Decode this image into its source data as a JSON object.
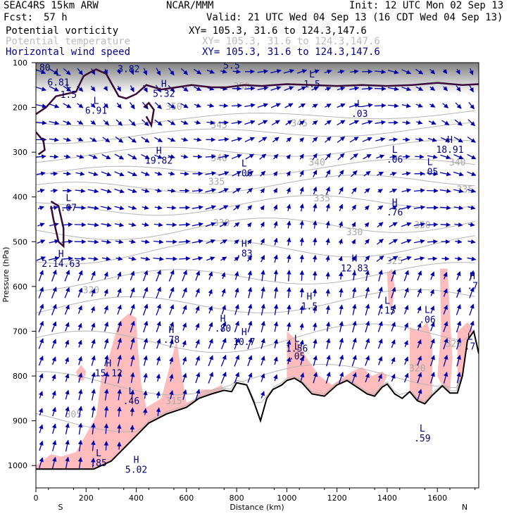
{
  "header": {
    "model": "SEAC4RS 15km ARW",
    "center": "NCAR/MMM",
    "init": "Init: 12 UTC Mon 02 Sep 13",
    "fcst_label": "Fcst:",
    "fcst_value": "57 h",
    "valid": "Valid: 21 UTC Wed 04 Sep 13 (16 CDT Wed 04 Sep 13)",
    "fields": [
      {
        "name": "Potential vorticity",
        "xy": "XY= 105.3, 31.6 to 124.3,147.6",
        "color": "#000000"
      },
      {
        "name": "Potential temperature",
        "xy": "XY= 105.3, 31.6 to 124.3,147.6",
        "color": "#bbbbbb"
      },
      {
        "name": "Horizontal wind speed",
        "xy": "XY= 105.3, 31.6 to 124.3,147.6",
        "color": "#000088"
      }
    ]
  },
  "chart_data": {
    "type": "cross-section",
    "xlabel": "Distance (km)",
    "ylabel": "Pressure (hPa)",
    "x_range": [
      0,
      1765
    ],
    "y_range": [
      1050,
      100
    ],
    "x_ticks": [
      0,
      200,
      400,
      600,
      800,
      1000,
      1200,
      1400,
      1600
    ],
    "y_ticks": [
      100,
      200,
      300,
      400,
      500,
      600,
      700,
      800,
      900,
      1000
    ],
    "end_labels": {
      "left": "S",
      "right": "N"
    },
    "terrain_surface_hpa": [
      [
        0,
        1008
      ],
      [
        100,
        1008
      ],
      [
        230,
        1008
      ],
      [
        300,
        990
      ],
      [
        380,
        945
      ],
      [
        450,
        905
      ],
      [
        520,
        885
      ],
      [
        600,
        870
      ],
      [
        650,
        850
      ],
      [
        700,
        840
      ],
      [
        750,
        832
      ],
      [
        780,
        835
      ],
      [
        800,
        815
      ],
      [
        840,
        820
      ],
      [
        870,
        860
      ],
      [
        895,
        900
      ],
      [
        920,
        850
      ],
      [
        945,
        830
      ],
      [
        980,
        820
      ],
      [
        1000,
        810
      ],
      [
        1030,
        805
      ],
      [
        1060,
        815
      ],
      [
        1100,
        840
      ],
      [
        1150,
        845
      ],
      [
        1200,
        820
      ],
      [
        1240,
        810
      ],
      [
        1280,
        825
      ],
      [
        1320,
        840
      ],
      [
        1350,
        845
      ],
      [
        1380,
        825
      ],
      [
        1400,
        818
      ],
      [
        1430,
        840
      ],
      [
        1460,
        850
      ],
      [
        1490,
        835
      ],
      [
        1520,
        855
      ],
      [
        1550,
        862
      ],
      [
        1580,
        843
      ],
      [
        1620,
        822
      ],
      [
        1650,
        838
      ],
      [
        1680,
        838
      ],
      [
        1700,
        800
      ],
      [
        1720,
        720
      ],
      [
        1745,
        700
      ],
      [
        1765,
        750
      ]
    ],
    "theta_contours": [
      {
        "value": "305",
        "x": 150,
        "y": 893
      },
      {
        "value": "315",
        "x": 550,
        "y": 863
      },
      {
        "value": "320",
        "x": 220,
        "y": 615
      },
      {
        "value": "320",
        "x": 1665,
        "y": 735
      },
      {
        "value": "320",
        "x": 1520,
        "y": 790
      },
      {
        "value": "325",
        "x": 1430,
        "y": 550
      },
      {
        "value": "330",
        "x": 1270,
        "y": 485
      },
      {
        "value": "330",
        "x": 1540,
        "y": 470
      },
      {
        "value": "330",
        "x": 740,
        "y": 465
      },
      {
        "value": "335",
        "x": 720,
        "y": 373
      },
      {
        "value": "335",
        "x": 1140,
        "y": 410
      },
      {
        "value": "335",
        "x": 1710,
        "y": 390
      },
      {
        "value": "340",
        "x": 730,
        "y": 320
      },
      {
        "value": "340",
        "x": 1120,
        "y": 330
      },
      {
        "value": "340",
        "x": 1680,
        "y": 330
      },
      {
        "value": "345",
        "x": 730,
        "y": 246
      },
      {
        "value": "345",
        "x": 1050,
        "y": 242
      },
      {
        "value": "350",
        "x": 550,
        "y": 205
      },
      {
        "value": "350",
        "x": 820,
        "y": 160
      }
    ],
    "wind_extrema": [
      {
        "type": "L",
        "value": ".80",
        "x": 25,
        "y": 107
      },
      {
        "type": "L",
        "value": "6.81",
        "x": 90,
        "y": 140
      },
      {
        "type": "L",
        "value": "1.5",
        "x": 130,
        "y": 168
      },
      {
        "type": "L",
        "value": "6.91",
        "x": 240,
        "y": 203
      },
      {
        "type": "H",
        "value": "3.82",
        "x": 370,
        "y": 110
      },
      {
        "type": "H",
        "value": "5.32",
        "x": 510,
        "y": 165
      },
      {
        "type": "H",
        "value": "5.5",
        "x": 780,
        "y": 102
      },
      {
        "type": "L",
        "value": "1.5",
        "x": 1100,
        "y": 144
      },
      {
        "type": "L",
        "value": ".03",
        "x": 1290,
        "y": 210
      },
      {
        "type": "H",
        "value": "19.82",
        "x": 490,
        "y": 315
      },
      {
        "type": "L",
        "value": ".06",
        "x": 830,
        "y": 343
      },
      {
        "type": "L",
        "value": ".06",
        "x": 1430,
        "y": 312
      },
      {
        "type": "L",
        "value": ".05",
        "x": 1570,
        "y": 340
      },
      {
        "type": "H",
        "value": "18.91",
        "x": 1650,
        "y": 290
      },
      {
        "type": "L",
        "value": ".07",
        "x": 130,
        "y": 420
      },
      {
        "type": "H",
        "value": ".76",
        "x": 1430,
        "y": 430
      },
      {
        "type": "H",
        "value": "2.14.63",
        "x": 100,
        "y": 545
      },
      {
        "type": "H",
        "value": ".83",
        "x": 830,
        "y": 522
      },
      {
        "type": "H",
        "value": "12.83",
        "x": 1270,
        "y": 555
      },
      {
        "type": "H",
        "value": "1.5",
        "x": 1090,
        "y": 640
      },
      {
        "type": "L",
        "value": ".15",
        "x": 1400,
        "y": 650
      },
      {
        "type": "H",
        "value": ".7",
        "x": 1740,
        "y": 595
      },
      {
        "type": "L",
        "value": ".06",
        "x": 1560,
        "y": 670
      },
      {
        "type": "H",
        "value": ".80",
        "x": 745,
        "y": 690
      },
      {
        "type": "H",
        "value": "10.7",
        "x": 830,
        "y": 720
      },
      {
        "type": "H",
        "value": ".78",
        "x": 540,
        "y": 715
      },
      {
        "type": "L",
        "value": "1.56",
        "x": 1040,
        "y": 735
      },
      {
        "type": "L",
        "value": ".05",
        "x": 1040,
        "y": 752
      },
      {
        "type": "H",
        "value": "15.12",
        "x": 290,
        "y": 790
      },
      {
        "type": "L",
        "value": ".46",
        "x": 380,
        "y": 852
      },
      {
        "type": "L",
        "value": ".7",
        "x": 1730,
        "y": 730
      },
      {
        "type": "L",
        "value": ".59",
        "x": 1540,
        "y": 935
      },
      {
        "type": "L",
        "value": ".85",
        "x": 250,
        "y": 990
      },
      {
        "type": "H",
        "value": "5.02",
        "x": 400,
        "y": 1005
      }
    ]
  }
}
